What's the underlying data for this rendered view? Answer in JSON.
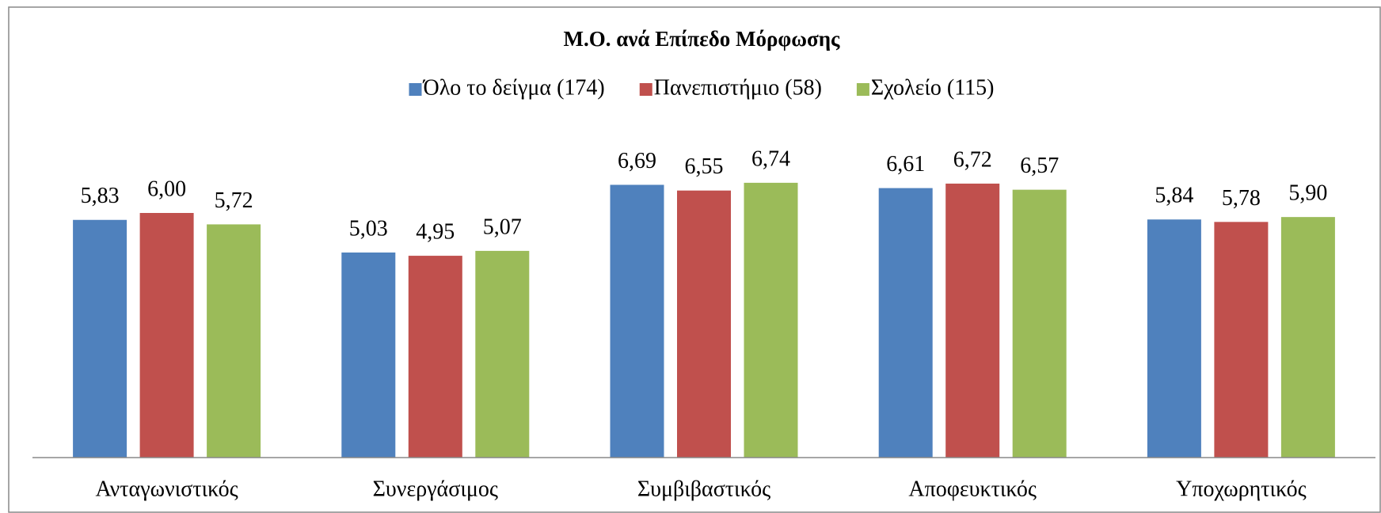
{
  "chart_data": {
    "type": "bar",
    "title": "Μ.Ο. ανά Επίπεδο Μόρφωσης",
    "categories": [
      "Ανταγωνιστικός",
      "Συνεργάσιμος",
      "Συμβιβαστικός",
      "Αποφευκτικός",
      "Υποχωρητικός"
    ],
    "series": [
      {
        "name": "Όλο το δείγμα (174)",
        "color": "#4f81bd",
        "values": [
          5.83,
          5.03,
          6.69,
          6.61,
          5.84
        ],
        "value_labels": [
          "5,83",
          "5,03",
          "6,69",
          "6,61",
          "5,84"
        ]
      },
      {
        "name": "Πανεπιστήμιο (58)",
        "color": "#c0504d",
        "values": [
          6.0,
          4.95,
          6.55,
          6.72,
          5.78
        ],
        "value_labels": [
          "6,00",
          "4,95",
          "6,55",
          "6,72",
          "5,78"
        ]
      },
      {
        "name": "Σχολείο (115)",
        "color": "#9bbb59",
        "values": [
          5.72,
          5.07,
          6.74,
          6.57,
          5.9
        ],
        "value_labels": [
          "5,72",
          "5,07",
          "6,74",
          "6,57",
          "5,90"
        ]
      }
    ],
    "ylim": [
      0,
      8
    ],
    "legend": "top"
  }
}
